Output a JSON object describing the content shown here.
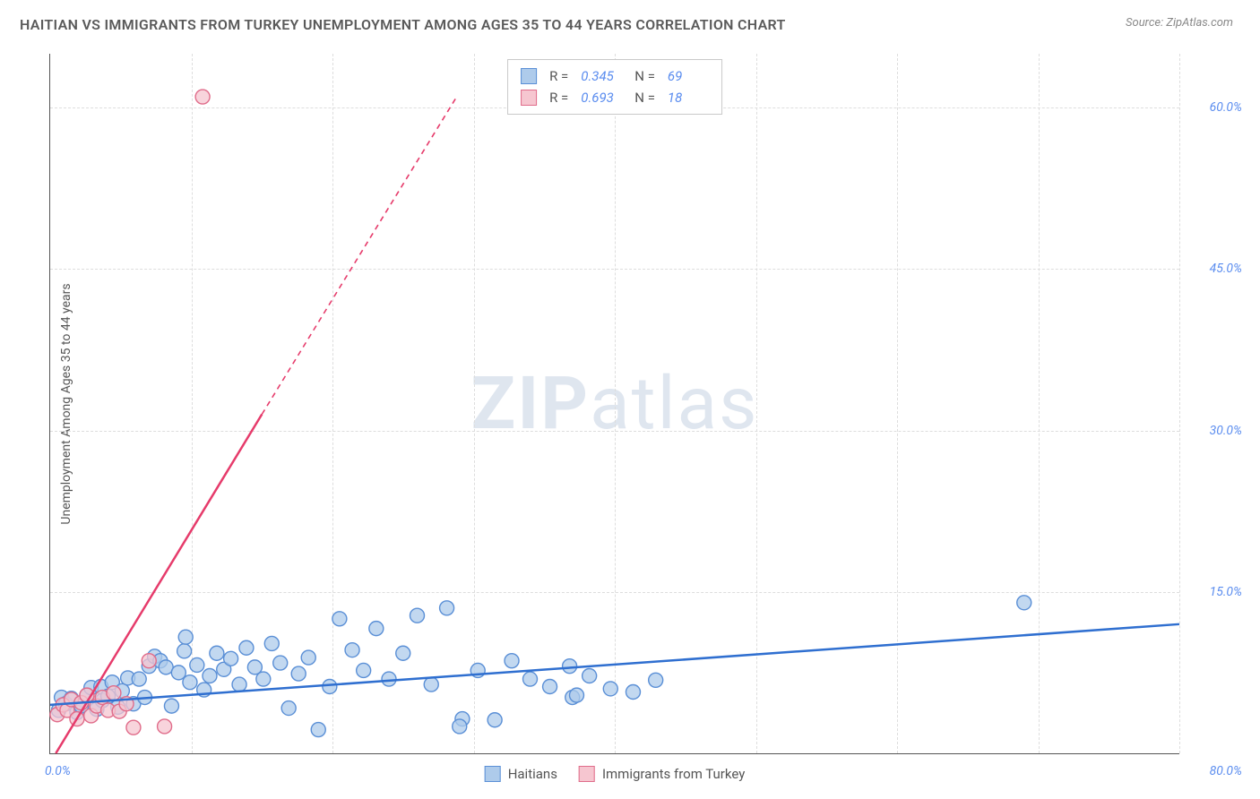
{
  "title": "HAITIAN VS IMMIGRANTS FROM TURKEY UNEMPLOYMENT AMONG AGES 35 TO 44 YEARS CORRELATION CHART",
  "source": "Source: ZipAtlas.com",
  "y_axis_label": "Unemployment Among Ages 35 to 44 years",
  "watermark": {
    "bold": "ZIP",
    "rest": "atlas"
  },
  "chart": {
    "type": "scatter",
    "xlim": [
      0,
      80
    ],
    "ylim": [
      0,
      65
    ],
    "x_tick_origin": "0.0%",
    "x_tick_max": "80.0%",
    "y_ticks": [
      {
        "v": 15,
        "label": "15.0%"
      },
      {
        "v": 30,
        "label": "30.0%"
      },
      {
        "v": 45,
        "label": "45.0%"
      },
      {
        "v": 60,
        "label": "60.0%"
      }
    ],
    "x_grid": [
      10,
      20,
      30,
      40,
      50,
      60,
      70,
      80
    ],
    "background_color": "#ffffff",
    "grid_color": "#dddddd",
    "axis_color": "#555555",
    "marker_radius": 8,
    "marker_stroke_width": 1.4,
    "trend_width_solid": 2.5,
    "trend_width_dash": 1.6,
    "trend_dash": "6 5"
  },
  "series": {
    "haitians": {
      "label": "Haitians",
      "fill": "#aecbeb",
      "stroke": "#5a8fd6",
      "line_color": "#2f6fd0",
      "R": "0.345",
      "N": "69",
      "trend": {
        "x1": 0,
        "y1": 4.5,
        "x2": 80,
        "y2": 12.0
      },
      "points": [
        [
          0.6,
          4.0
        ],
        [
          0.8,
          5.2
        ],
        [
          1.1,
          4.6
        ],
        [
          1.5,
          5.1
        ],
        [
          1.9,
          3.8
        ],
        [
          2.2,
          4.4
        ],
        [
          2.6,
          5.4
        ],
        [
          2.9,
          6.1
        ],
        [
          3.3,
          4.1
        ],
        [
          3.7,
          4.9
        ],
        [
          3.6,
          6.2
        ],
        [
          4.1,
          5.3
        ],
        [
          4.4,
          6.6
        ],
        [
          4.8,
          4.3
        ],
        [
          5.1,
          5.8
        ],
        [
          5.5,
          7.0
        ],
        [
          5.9,
          4.6
        ],
        [
          6.3,
          6.9
        ],
        [
          6.7,
          5.2
        ],
        [
          7.0,
          8.1
        ],
        [
          7.4,
          9.0
        ],
        [
          7.8,
          8.6
        ],
        [
          8.2,
          8.0
        ],
        [
          8.6,
          4.4
        ],
        [
          9.1,
          7.5
        ],
        [
          9.5,
          9.5
        ],
        [
          9.9,
          6.6
        ],
        [
          9.6,
          10.8
        ],
        [
          10.4,
          8.2
        ],
        [
          10.9,
          5.9
        ],
        [
          11.3,
          7.2
        ],
        [
          11.8,
          9.3
        ],
        [
          12.3,
          7.8
        ],
        [
          12.8,
          8.8
        ],
        [
          13.4,
          6.4
        ],
        [
          13.9,
          9.8
        ],
        [
          14.5,
          8.0
        ],
        [
          15.1,
          6.9
        ],
        [
          15.7,
          10.2
        ],
        [
          16.3,
          8.4
        ],
        [
          16.9,
          4.2
        ],
        [
          17.6,
          7.4
        ],
        [
          18.3,
          8.9
        ],
        [
          19.0,
          2.2
        ],
        [
          19.8,
          6.2
        ],
        [
          20.5,
          12.5
        ],
        [
          21.4,
          9.6
        ],
        [
          22.2,
          7.7
        ],
        [
          23.1,
          11.6
        ],
        [
          24.0,
          6.9
        ],
        [
          25.0,
          9.3
        ],
        [
          26.0,
          12.8
        ],
        [
          27.0,
          6.4
        ],
        [
          28.1,
          13.5
        ],
        [
          29.2,
          3.2
        ],
        [
          29.0,
          2.5
        ],
        [
          30.3,
          7.7
        ],
        [
          31.5,
          3.1
        ],
        [
          32.7,
          8.6
        ],
        [
          34.0,
          6.9
        ],
        [
          35.4,
          6.2
        ],
        [
          36.8,
          8.1
        ],
        [
          37.0,
          5.2
        ],
        [
          37.3,
          5.4
        ],
        [
          38.2,
          7.2
        ],
        [
          39.7,
          6.0
        ],
        [
          41.3,
          5.7
        ],
        [
          42.9,
          6.8
        ],
        [
          69.0,
          14.0
        ]
      ]
    },
    "turkey": {
      "label": "Immigrants from Turkey",
      "fill": "#f6c6d0",
      "stroke": "#e06c8a",
      "line_color": "#e63b6b",
      "R": "0.693",
      "N": "18",
      "trend_solid": {
        "x1": 0.4,
        "y1": 0.0,
        "x2": 15,
        "y2": 31.5
      },
      "trend_dash": {
        "x1": 15,
        "y1": 31.5,
        "x2": 28.8,
        "y2": 61.0
      },
      "points": [
        [
          0.5,
          3.6
        ],
        [
          0.9,
          4.5
        ],
        [
          1.2,
          4.0
        ],
        [
          1.5,
          5.0
        ],
        [
          1.9,
          3.2
        ],
        [
          2.2,
          4.7
        ],
        [
          2.6,
          5.4
        ],
        [
          2.9,
          3.5
        ],
        [
          3.3,
          4.4
        ],
        [
          3.7,
          5.2
        ],
        [
          4.1,
          4.0
        ],
        [
          4.5,
          5.6
        ],
        [
          4.9,
          3.9
        ],
        [
          5.4,
          4.6
        ],
        [
          5.9,
          2.4
        ],
        [
          7.0,
          8.6
        ],
        [
          8.1,
          2.5
        ],
        [
          10.8,
          61.0
        ]
      ]
    }
  },
  "legend_r_label": "R =",
  "legend_n_label": "N ="
}
